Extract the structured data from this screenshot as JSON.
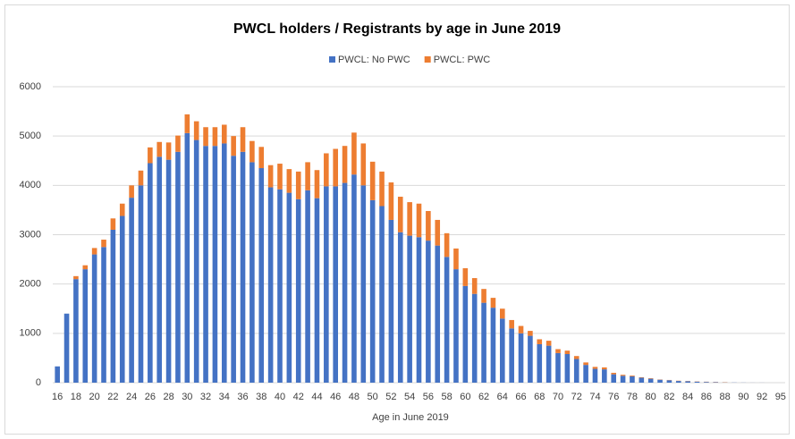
{
  "chart_data": {
    "type": "stacked_bar",
    "title": "PWCL holders / Registrants by age in June 2019",
    "x_label": "Age in June 2019",
    "categories": [
      "16",
      null,
      "18",
      null,
      "20",
      null,
      "22",
      null,
      "24",
      null,
      "26",
      null,
      "28",
      null,
      "30",
      null,
      "32",
      null,
      "34",
      null,
      "36",
      null,
      "38",
      null,
      "40",
      null,
      "42",
      null,
      "44",
      null,
      "46",
      null,
      "48",
      null,
      "50",
      null,
      "52",
      null,
      "54",
      null,
      "56",
      null,
      "58",
      null,
      "60",
      null,
      "62",
      null,
      "64",
      null,
      "66",
      null,
      "68",
      null,
      "70",
      null,
      "72",
      null,
      "74",
      null,
      "76",
      null,
      "78",
      null,
      "80",
      null,
      "82",
      null,
      "84",
      null,
      "86",
      null,
      "88",
      null,
      "90",
      null,
      "92",
      null,
      "95"
    ],
    "series": [
      {
        "name": "PWCL: No PWC",
        "color": "#4472c4",
        "values": [
          330,
          1400,
          2100,
          2300,
          2600,
          2750,
          3100,
          3380,
          3750,
          4000,
          4450,
          4580,
          4520,
          4680,
          5060,
          4920,
          4800,
          4800,
          4850,
          4600,
          4680,
          4470,
          4350,
          3960,
          3920,
          3850,
          3720,
          3900,
          3740,
          3980,
          3980,
          4050,
          4220,
          4000,
          3700,
          3580,
          3300,
          3050,
          2980,
          2950,
          2880,
          2780,
          2550,
          2300,
          1960,
          1800,
          1620,
          1520,
          1300,
          1100,
          1000,
          950,
          780,
          750,
          600,
          580,
          480,
          360,
          280,
          270,
          170,
          140,
          130,
          100,
          80,
          60,
          50,
          35,
          30,
          20,
          15,
          10,
          5,
          3,
          2,
          1,
          1,
          0,
          0
        ]
      },
      {
        "name": "PWCL: PWC",
        "color": "#ed7d31",
        "values": [
          0,
          0,
          60,
          80,
          130,
          150,
          230,
          250,
          250,
          300,
          320,
          300,
          350,
          330,
          380,
          380,
          380,
          380,
          380,
          400,
          500,
          430,
          430,
          450,
          520,
          480,
          560,
          570,
          570,
          670,
          760,
          750,
          850,
          850,
          780,
          700,
          760,
          720,
          680,
          680,
          600,
          520,
          480,
          420,
          360,
          320,
          280,
          200,
          200,
          170,
          150,
          100,
          100,
          100,
          80,
          70,
          60,
          50,
          40,
          40,
          30,
          20,
          15,
          10,
          10,
          5,
          5,
          5,
          5,
          5,
          5,
          5,
          5,
          0,
          0,
          0,
          0,
          0,
          0
        ]
      }
    ],
    "ylim": [
      0,
      6000
    ],
    "yticks": [
      0,
      1000,
      2000,
      3000,
      4000,
      5000,
      6000
    ],
    "grid": true,
    "legend": "top"
  }
}
